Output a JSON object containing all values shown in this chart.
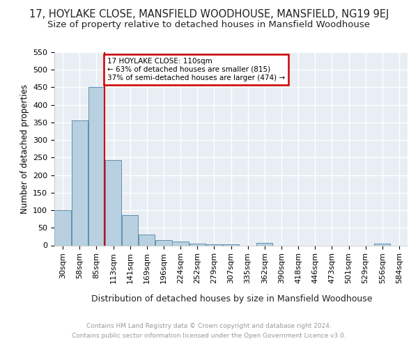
{
  "title": "17, HOYLAKE CLOSE, MANSFIELD WOODHOUSE, MANSFIELD, NG19 9EJ",
  "subtitle": "Size of property relative to detached houses in Mansfield Woodhouse",
  "xlabel": "Distribution of detached houses by size in Mansfield Woodhouse",
  "ylabel": "Number of detached properties",
  "footer_line1": "Contains HM Land Registry data © Crown copyright and database right 2024.",
  "footer_line2": "Contains public sector information licensed under the Open Government Licence v3.0.",
  "bar_labels": [
    "30sqm",
    "58sqm",
    "85sqm",
    "113sqm",
    "141sqm",
    "169sqm",
    "196sqm",
    "224sqm",
    "252sqm",
    "279sqm",
    "307sqm",
    "335sqm",
    "362sqm",
    "390sqm",
    "418sqm",
    "446sqm",
    "473sqm",
    "501sqm",
    "529sqm",
    "556sqm",
    "584sqm"
  ],
  "bar_values": [
    100,
    355,
    450,
    242,
    87,
    30,
    15,
    10,
    5,
    2,
    2,
    0,
    6,
    0,
    0,
    0,
    0,
    0,
    0,
    5,
    0
  ],
  "bar_color": "#b8d0e0",
  "bar_edge_color": "#6090b0",
  "annotation_text_line1": "17 HOYLAKE CLOSE: 110sqm",
  "annotation_text_line2": "← 63% of detached houses are smaller (815)",
  "annotation_text_line3": "37% of semi-detached houses are larger (474) →",
  "annotation_box_color": "#ffffff",
  "annotation_box_edge": "#cc0000",
  "vline_color": "#cc0000",
  "vline_x_index": 3,
  "ylim": [
    0,
    550
  ],
  "yticks": [
    0,
    50,
    100,
    150,
    200,
    250,
    300,
    350,
    400,
    450,
    500,
    550
  ],
  "background_color": "#e8eef4",
  "grid_color": "#ffffff",
  "title_fontsize": 10.5,
  "subtitle_fontsize": 9.5,
  "xlabel_fontsize": 9,
  "ylabel_fontsize": 8.5,
  "tick_fontsize": 8,
  "annotation_fontsize": 7.5,
  "footer_fontsize": 6.5
}
